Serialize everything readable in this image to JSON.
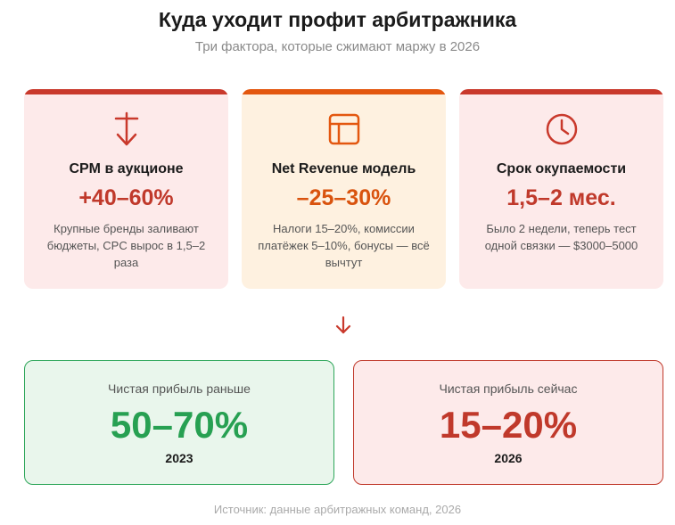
{
  "header": {
    "title": "Куда уходит профит арбитражника",
    "subtitle": "Три фактора, которые сжимают маржу в 2026"
  },
  "factors": [
    {
      "icon": "cpm-down-arrow-icon",
      "name": "CPM в аукционе",
      "value": "+40–60%",
      "description": "Крупные бренды заливают бюджеты, CPC вырос в 1,5–2 раза",
      "accent": "#c9392c"
    },
    {
      "icon": "layout-table-icon",
      "name": "Net Revenue модель",
      "value": "–25–30%",
      "description": "Налоги 15–20%, комиссии платёжек 5–10%, бонусы — всё вычтут",
      "accent": "#e3570f"
    },
    {
      "icon": "clock-icon",
      "name": "Срок окупаемости",
      "value": "1,5–2 мес.",
      "description": "Было 2 недели, теперь тест одной связки — $3000–5000",
      "accent": "#c9392c"
    }
  ],
  "results": {
    "before": {
      "label": "Чистая прибыль раньше",
      "value": "50–70%",
      "year": "2023",
      "color": "#27a052"
    },
    "now": {
      "label": "Чистая прибыль сейчас",
      "value": "15–20%",
      "year": "2026",
      "color": "#c0392b"
    }
  },
  "footer": {
    "source": "Источник: данные арбитражных команд, 2026"
  }
}
